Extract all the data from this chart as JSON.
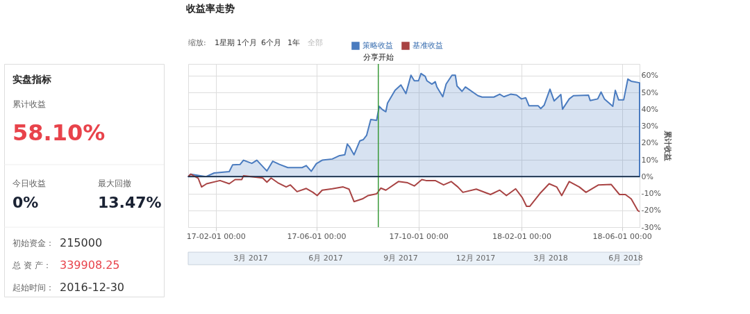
{
  "chart_data": [
    {
      "type": "other",
      "title": "实盘指标",
      "annotations": [
        "累计收益",
        "58.10%",
        "今日收益",
        "0%",
        "最大回撤",
        "13.47%",
        "初始资金：",
        "215000",
        "总 资 产：",
        "339908.25",
        "起始时间：",
        "2016-12-30"
      ]
    },
    {
      "type": "line",
      "title": "收益率走势",
      "ylabel": "累计收益",
      "series": [
        {
          "name": "策略收益",
          "type": "area",
          "color": "#4a7bbf",
          "x": [
            "2016-12-30",
            "2017-01-02",
            "2017-01-20",
            "2017-01-30",
            "2017-02-17",
            "2017-02-21",
            "2017-03-02",
            "2017-03-06",
            "2017-03-16",
            "2017-03-22",
            "2017-04-03",
            "2017-04-10",
            "2017-04-18",
            "2017-04-28",
            "2017-05-15",
            "2017-05-20",
            "2017-05-26",
            "2017-06-01",
            "2017-06-08",
            "2017-06-20",
            "2017-06-28",
            "2017-07-05",
            "2017-07-08",
            "2017-07-11",
            "2017-07-16",
            "2017-07-23",
            "2017-07-27",
            "2017-07-31",
            "2017-08-05",
            "2017-08-12",
            "2017-08-15",
            "2017-08-19",
            "2017-08-23",
            "2017-08-25",
            "2017-09-03",
            "2017-09-10",
            "2017-09-16",
            "2017-09-22",
            "2017-09-26",
            "2017-10-01",
            "2017-10-04",
            "2017-10-09",
            "2017-10-11",
            "2017-10-17",
            "2017-10-21",
            "2017-10-23",
            "2017-10-30",
            "2017-11-03",
            "2017-11-10",
            "2017-11-14",
            "2017-11-16",
            "2017-11-22",
            "2017-11-26",
            "2017-12-11",
            "2017-12-16",
            "2017-12-30",
            "2018-01-06",
            "2018-01-11",
            "2018-01-19",
            "2018-01-26",
            "2018-02-01",
            "2018-02-06",
            "2018-02-10",
            "2018-02-21",
            "2018-02-24",
            "2018-02-28",
            "2018-03-07",
            "2018-03-12",
            "2018-03-20",
            "2018-03-22",
            "2018-03-30",
            "2018-04-04",
            "2018-04-22",
            "2018-04-24",
            "2018-05-03",
            "2018-05-07",
            "2018-05-11",
            "2018-05-21",
            "2018-05-24",
            "2018-05-28",
            "2018-06-03",
            "2018-06-08",
            "2018-06-12",
            "2018-06-22"
          ],
          "values": [
            0,
            1.5,
            0,
            2.2,
            3,
            7,
            7.3,
            9.8,
            7.9,
            9.8,
            3.4,
            9.2,
            7.3,
            5.4,
            5.4,
            6.6,
            3.2,
            7.7,
            9.8,
            10.5,
            12.4,
            13,
            19.4,
            17.5,
            13,
            21.3,
            22,
            24.5,
            34,
            33.5,
            41.8,
            39.8,
            38.6,
            43.7,
            51.3,
            54.5,
            49.4,
            60.3,
            57,
            57,
            61.3,
            59.6,
            57,
            55,
            56.4,
            53.3,
            47.5,
            55,
            60.3,
            60.3,
            53.9,
            50.7,
            53.3,
            48.1,
            47.3,
            47.3,
            49,
            47.5,
            49,
            48.5,
            46.2,
            46.9,
            42.1,
            42.1,
            40.5,
            42.4,
            52,
            45,
            48.8,
            40.1,
            46.2,
            48.1,
            48.4,
            45.2,
            46.2,
            50.3,
            46.2,
            41.8,
            51.3,
            45.6,
            45.6,
            58,
            56.7,
            55.8
          ]
        },
        {
          "name": "基准收益",
          "type": "line",
          "color": "#a84343",
          "x": [
            "2016-12-30",
            "2017-01-02",
            "2017-01-11",
            "2017-01-15",
            "2017-01-21",
            "2017-02-06",
            "2017-02-17",
            "2017-02-24",
            "2017-03-04",
            "2017-03-06",
            "2017-03-22",
            "2017-03-29",
            "2017-04-03",
            "2017-04-08",
            "2017-04-16",
            "2017-04-26",
            "2017-05-01",
            "2017-05-09",
            "2017-05-20",
            "2017-05-28",
            "2017-06-02",
            "2017-06-08",
            "2017-06-20",
            "2017-07-03",
            "2017-07-10",
            "2017-07-16",
            "2017-07-26",
            "2017-08-02",
            "2017-08-12",
            "2017-08-17",
            "2017-08-23",
            "2017-09-07",
            "2017-09-18",
            "2017-09-26",
            "2017-10-05",
            "2017-10-10",
            "2017-10-21",
            "2017-10-31",
            "2017-11-09",
            "2017-11-17",
            "2017-11-23",
            "2017-12-09",
            "2017-12-26",
            "2018-01-06",
            "2018-01-14",
            "2018-01-25",
            "2018-02-02",
            "2018-02-07",
            "2018-02-11",
            "2018-02-23",
            "2018-03-06",
            "2018-03-15",
            "2018-03-21",
            "2018-03-30",
            "2018-04-11",
            "2018-04-19",
            "2018-05-04",
            "2018-05-19",
            "2018-05-29",
            "2018-06-05",
            "2018-06-12",
            "2018-06-20",
            "2018-06-22"
          ],
          "values": [
            0,
            1.5,
            -1,
            -6.1,
            -4.2,
            -2.3,
            -4.2,
            -1.7,
            -1.7,
            0.5,
            -0.4,
            -0.8,
            -3.3,
            -0.8,
            -3.6,
            -6.1,
            -4.9,
            -8.9,
            -7,
            -9.3,
            -11.2,
            -8,
            -7.2,
            -6.1,
            -7.4,
            -14.8,
            -13.2,
            -11.2,
            -10.2,
            -6.8,
            -8,
            -2.9,
            -3.6,
            -5.5,
            -1.7,
            -2.3,
            -2.3,
            -4.9,
            -2.9,
            -6.1,
            -9.3,
            -7.4,
            -10.6,
            -8,
            -11.2,
            -7.2,
            -12.5,
            -17.6,
            -17.6,
            -10,
            -4.2,
            -6.1,
            -11.2,
            -2.9,
            -6.1,
            -9.3,
            -4.9,
            -4.6,
            -10.6,
            -10.6,
            -13.2,
            -20.2,
            -20.8
          ]
        }
      ],
      "xlim": [
        "2016-12-30",
        "2018-06-22"
      ],
      "xticks": [
        {
          "value": "2017-02-01",
          "label": "17-02-01 00:00"
        },
        {
          "value": "2017-06-01",
          "label": "17-06-01 00:00"
        },
        {
          "value": "2017-10-01",
          "label": "17-10-01 00:00"
        },
        {
          "value": "2018-02-01",
          "label": "18-02-01 00:00"
        },
        {
          "value": "2018-06-01",
          "label": "18-06-01 00:00"
        }
      ],
      "ylim": [
        -30,
        67
      ],
      "yticks": [
        {
          "value": -30,
          "label": "-30%"
        },
        {
          "value": -20,
          "label": "-20%"
        },
        {
          "value": -10,
          "label": "-10%"
        },
        {
          "value": 0,
          "label": "0%"
        },
        {
          "value": 10,
          "label": "10%"
        },
        {
          "value": 20,
          "label": "20%"
        },
        {
          "value": 30,
          "label": "30%"
        },
        {
          "value": 40,
          "label": "40%"
        },
        {
          "value": 50,
          "label": "50%"
        },
        {
          "value": 60,
          "label": "60%"
        }
      ],
      "ref_lines": [
        {
          "axis": "x",
          "value": "2017-08-14",
          "label": "分享开始",
          "color": "#3a9a3a"
        },
        {
          "axis": "y",
          "value": 0,
          "label": null,
          "color": "#1a2a3a"
        }
      ],
      "annotations": [
        "缩放:",
        "1星期",
        "1个月",
        "6个月",
        "1年",
        "全部",
        "3月 2017",
        "6月 2017",
        "9月 2017",
        "12月 2017",
        "3月 2018",
        "6月 2018"
      ],
      "grid": true,
      "legend": "top right"
    }
  ]
}
